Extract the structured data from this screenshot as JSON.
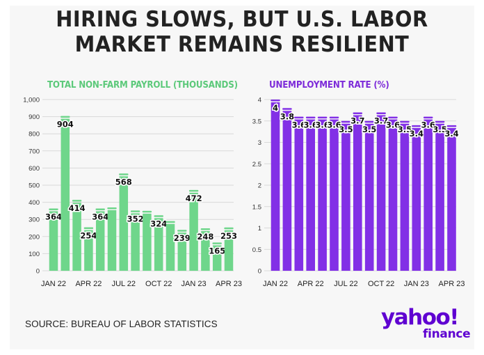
{
  "title": "HIRING SLOWS, BUT U.S. LABOR MARKET REMAINS RESILIENT",
  "title_lines": [
    "HIRING SLOWS, BUT U.S. LABOR",
    "MARKET REMAINS RESILIENT"
  ],
  "source": "SOURCE: BUREAU OF LABOR STATISTICS",
  "logo": {
    "brand": "yahoo!",
    "sub": "finance"
  },
  "colors": {
    "payroll_fill": "#6fd68b",
    "payroll_title": "#5cc97a",
    "unemployment_fill": "#8230e6",
    "unemployment_title": "#7d2bd9",
    "logo": "#5f01d1"
  },
  "chart_data": [
    {
      "type": "bar",
      "title": "TOTAL NON-FARM PAYROLL (THOUSANDS)",
      "categories": [
        "JAN 22",
        "FEB 22",
        "MAR 22",
        "APR 22",
        "MAY 22",
        "JUN 22",
        "JUL 22",
        "AUG 22",
        "SEP 22",
        "OCT 22",
        "NOV 22",
        "DEC 22",
        "JAN 23",
        "FEB 23",
        "MAR 23",
        "APR 23"
      ],
      "values": [
        364,
        904,
        414,
        254,
        364,
        370,
        568,
        352,
        350,
        324,
        290,
        239,
        472,
        248,
        165,
        253
      ],
      "data_labels": [
        "364",
        "904",
        "414",
        "254",
        "364",
        "",
        "568",
        "352",
        "",
        "324",
        "",
        "239",
        "472",
        "248",
        "165",
        "253"
      ],
      "x_tick_labels": [
        "JAN 22",
        "APR 22",
        "JUL 22",
        "OCT 22",
        "JAN 23",
        "APR 23"
      ],
      "x_tick_indices": [
        0,
        3,
        6,
        9,
        12,
        15
      ],
      "y_ticks": [
        "0",
        "100",
        "200",
        "300",
        "400",
        "500",
        "600",
        "700",
        "800",
        "900",
        "1,000"
      ],
      "ylim": [
        0,
        1000
      ],
      "grid": true
    },
    {
      "type": "bar",
      "title": "UNEMPLOYMENT RATE (%)",
      "categories": [
        "JAN 22",
        "FEB 22",
        "MAR 22",
        "APR 22",
        "MAY 22",
        "JUN 22",
        "JUL 22",
        "AUG 22",
        "SEP 22",
        "OCT 22",
        "NOV 22",
        "DEC 22",
        "JAN 23",
        "FEB 23",
        "MAR 23",
        "APR 23"
      ],
      "values": [
        4.0,
        3.8,
        3.6,
        3.6,
        3.6,
        3.6,
        3.5,
        3.7,
        3.5,
        3.7,
        3.6,
        3.5,
        3.4,
        3.6,
        3.5,
        3.4
      ],
      "data_labels": [
        "4",
        "3.8",
        "3.6",
        "3.6",
        "3.6",
        "3.6",
        "3.5",
        "3.7",
        "3.5",
        "3.7",
        "3.6",
        "3.5",
        "3.4",
        "3.6",
        "3.5",
        "3.4"
      ],
      "x_tick_labels": [
        "JAN 22",
        "APR 22",
        "JUL 22",
        "OCT 22",
        "JAN 23",
        "APR 23"
      ],
      "x_tick_indices": [
        0,
        3,
        6,
        9,
        12,
        15
      ],
      "y_ticks": [
        "0",
        "0.5",
        "1",
        "1.5",
        "2",
        "2.5",
        "3",
        "3.5",
        "4"
      ],
      "ylim": [
        0,
        4
      ],
      "grid": true
    }
  ]
}
